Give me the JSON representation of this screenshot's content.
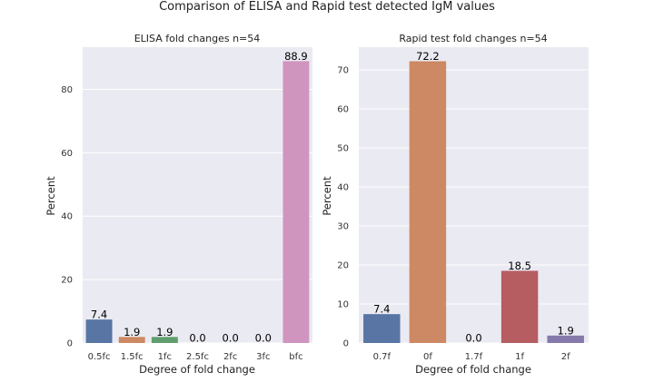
{
  "figure": {
    "title": "Comparison of ELISA and Rapid test detected IgM values"
  },
  "chart_data": [
    {
      "type": "bar",
      "title": "ELISA fold changes n=54",
      "xlabel": "Degree of fold change",
      "ylabel": "Percent",
      "categories": [
        "0.5fc",
        "1.5fc",
        "1fc",
        "2.5fc",
        "2fc",
        "3fc",
        "bfc"
      ],
      "values": [
        7.4,
        1.9,
        1.9,
        0.0,
        0.0,
        0.0,
        88.9
      ],
      "value_labels": [
        "7.4",
        "1.9",
        "1.9",
        "0.0",
        "0.0",
        "0.0",
        "88.9"
      ],
      "colors": [
        "#5875a4",
        "#cc8963",
        "#5f9e6e",
        "#b55d60",
        "#857aab",
        "#8d7866",
        "#d095bf"
      ],
      "ylim": [
        0,
        93.3
      ],
      "yticks": [
        0,
        20,
        40,
        60,
        80
      ],
      "grid": true
    },
    {
      "type": "bar",
      "title": "Rapid test fold changes n=54",
      "xlabel": "Degree of fold change",
      "ylabel": "Percent",
      "categories": [
        "0.7f",
        "0f",
        "1.7f",
        "1f",
        "2f"
      ],
      "values": [
        7.4,
        72.2,
        0.0,
        18.5,
        1.9
      ],
      "value_labels": [
        "7.4",
        "72.2",
        "0.0",
        "18.5",
        "1.9"
      ],
      "colors": [
        "#5875a4",
        "#cc8963",
        "#5f9e6e",
        "#b55d60",
        "#857aab"
      ],
      "ylim": [
        0,
        75.8
      ],
      "yticks": [
        0,
        10,
        20,
        30,
        40,
        50,
        60,
        70
      ],
      "grid": true
    }
  ]
}
